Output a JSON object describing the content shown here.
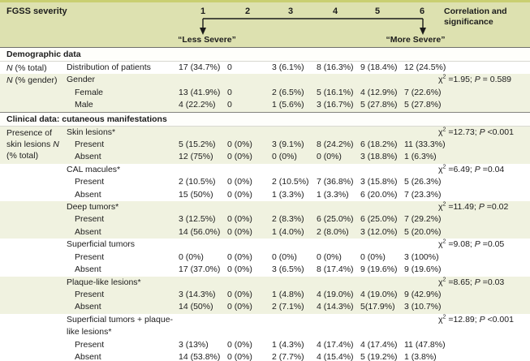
{
  "header": {
    "title": "FGSS severity",
    "severity_levels": [
      "1",
      "2",
      "3",
      "4",
      "5",
      "6"
    ],
    "correlation_header": "Correlation and significance",
    "less_severe_label": "“Less Severe”",
    "more_severe_label": "“More Severe”"
  },
  "colors": {
    "header_bg": "#dde1b0",
    "tint_row_bg": "#f0f2e0",
    "top_border": "#c9cf72",
    "bottom_border": "#d6da5e",
    "section_line": "#84847e"
  },
  "icons": [
    {
      "name": "less-severe-arrow-icon",
      "meaning": "down arrow pointing to severity 1"
    },
    {
      "name": "more-severe-arrow-icon",
      "meaning": "down arrow pointing to severity 6"
    }
  ],
  "rows": [
    {
      "section": true,
      "label": "Demographic data"
    },
    {
      "left": "N (% total)",
      "label": "Distribution of patients",
      "indent": 0,
      "values": [
        "17 (34.7%)",
        "0",
        "3 (6.1%)",
        "8 (16.3%)",
        "9 (18.4%)",
        "12 (24.5%)"
      ],
      "corr": null,
      "tint": false
    },
    {
      "left": "N (% gender)",
      "label": "Gender",
      "indent": 0,
      "values": [
        "",
        "",
        "",
        "",
        "",
        ""
      ],
      "corr": {
        "chi2": "=1.95;",
        "p": "= 0.589"
      },
      "tint": true
    },
    {
      "label": "Female",
      "indent": 1,
      "values": [
        "13 (41.9%)",
        "0",
        "2 (6.5%)",
        "5 (16.1%)",
        "4 (12.9%)",
        "7 (22.6%)"
      ],
      "corr": null,
      "tint": true
    },
    {
      "label": "Male",
      "indent": 1,
      "values": [
        "4 (22.2%)",
        "0",
        "1 (5.6%)",
        "3 (16.7%)",
        "5 (27.8%)",
        "5 (27.8%)"
      ],
      "corr": null,
      "tint": true
    },
    {
      "section": true,
      "label": "Clinical data: cutaneous manifestations"
    },
    {
      "left": "Presence of skin lesions N (% total)",
      "left_rowspan": 3,
      "label": "Skin lesions*",
      "indent": 0,
      "values": [
        "",
        "",
        "",
        "",
        "",
        ""
      ],
      "corr": {
        "chi2": "=12.73;",
        "p": "<0.001"
      },
      "tint": true
    },
    {
      "label": "Present",
      "indent": 1,
      "values": [
        "5 (15.2%)",
        "0 (0%)",
        "3 (9.1%)",
        "8 (24.2%)",
        "6 (18.2%)",
        "11 (33.3%)"
      ],
      "corr": null,
      "tint": true
    },
    {
      "label": "Absent",
      "indent": 1,
      "values": [
        "12 (75%)",
        "0 (0%)",
        "0 (0%)",
        "0 (0%)",
        "3 (18.8%)",
        "1 (6.3%)"
      ],
      "corr": null,
      "tint": true
    },
    {
      "label": "CAL macules*",
      "indent": 0,
      "values": [
        "",
        "",
        "",
        "",
        "",
        ""
      ],
      "corr": {
        "chi2": "=6.49;",
        "p": "=0.04"
      },
      "tint": false
    },
    {
      "label": "Present",
      "indent": 1,
      "values": [
        "2 (10.5%)",
        "0 (0%)",
        "2 (10.5%)",
        "7 (36.8%)",
        "3 (15.8%)",
        "5 (26.3%)"
      ],
      "corr": null,
      "tint": false
    },
    {
      "label": "Absent",
      "indent": 1,
      "values": [
        "15 (50%)",
        "0 (0%)",
        "1 (3.3%)",
        "1 (3.3%)",
        "6 (20.0%)",
        "7 (23.3%)"
      ],
      "corr": null,
      "tint": false
    },
    {
      "label": "Deep tumors*",
      "indent": 0,
      "values": [
        "",
        "",
        "",
        "",
        "",
        ""
      ],
      "corr": {
        "chi2": "=11.49;",
        "p": "=0.02"
      },
      "tint": true
    },
    {
      "label": "Present",
      "indent": 1,
      "values": [
        "3 (12.5%)",
        "0 (0%)",
        "2 (8.3%)",
        "6 (25.0%)",
        "6 (25.0%)",
        "7 (29.2%)"
      ],
      "corr": null,
      "tint": true
    },
    {
      "label": "Absent",
      "indent": 1,
      "values": [
        "14 (56.0%)",
        "0 (0%)",
        "1 (4.0%)",
        "2 (8.0%)",
        "3 (12.0%)",
        "5 (20.0%)"
      ],
      "corr": null,
      "tint": true
    },
    {
      "label": "Superficial tumors",
      "indent": 0,
      "values": [
        "",
        "",
        "",
        "",
        "",
        ""
      ],
      "corr": {
        "chi2": "=9.08;",
        "p": "=0.05"
      },
      "tint": false
    },
    {
      "label": "Present",
      "indent": 1,
      "values": [
        "0 (0%)",
        "0 (0%)",
        "0 (0%)",
        "0 (0%)",
        "0 (0%)",
        "3 (100%)"
      ],
      "corr": null,
      "tint": false
    },
    {
      "label": "Absent",
      "indent": 1,
      "values": [
        "17 (37.0%)",
        "0 (0%)",
        "3 (6.5%)",
        "8 (17.4%)",
        "9 (19.6%)",
        "9 (19.6%)"
      ],
      "corr": null,
      "tint": false
    },
    {
      "label": "Plaque-like lesions*",
      "indent": 0,
      "values": [
        "",
        "",
        "",
        "",
        "",
        ""
      ],
      "corr": {
        "chi2": "=8.65;",
        "p": "=0.03"
      },
      "tint": true
    },
    {
      "label": "Present",
      "indent": 1,
      "values": [
        "3 (14.3%)",
        "0 (0%)",
        "1 (4.8%)",
        "4 (19.0%)",
        "4 (19.0%)",
        "9 (42.9%)"
      ],
      "corr": null,
      "tint": true
    },
    {
      "label": "Absent",
      "indent": 1,
      "values": [
        "14 (50%)",
        "0 (0%)",
        "2 (7.1%)",
        "4 (14.3%)",
        "5(17.9%)",
        "3 (10.7%)"
      ],
      "corr": null,
      "tint": true
    },
    {
      "label": "Superficial tumors + plaque-like lesions*",
      "indent": 0,
      "values": [
        "",
        "",
        "",
        "",
        "",
        ""
      ],
      "corr": {
        "chi2": "=12.89;",
        "p": "<0.001"
      },
      "tint": false
    },
    {
      "label": "Present",
      "indent": 1,
      "values": [
        "3 (13%)",
        "0 (0%)",
        "1 (4.3%)",
        "4 (17.4%)",
        "4 (17.4%)",
        "11 (47.8%)"
      ],
      "corr": null,
      "tint": false
    },
    {
      "label": "Absent",
      "indent": 1,
      "values": [
        "14 (53.8%)",
        "0 (0%)",
        "2 (7.7%)",
        "4 (15.4%)",
        "5 (19.2%)",
        "1 (3.8%)"
      ],
      "corr": null,
      "tint": false
    }
  ]
}
